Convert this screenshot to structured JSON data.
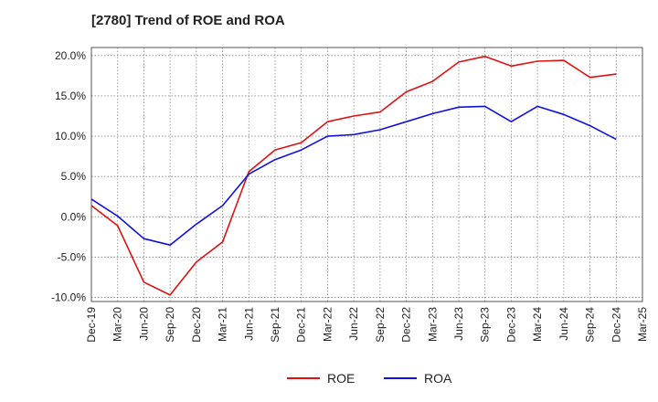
{
  "chart_data": {
    "type": "line",
    "title": "[2780]  Trend of ROE and ROA",
    "xlabel": "",
    "ylabel": "",
    "categories": [
      "Dec-19",
      "Mar-20",
      "Jun-20",
      "Sep-20",
      "Dec-20",
      "Mar-21",
      "Jun-21",
      "Sep-21",
      "Dec-21",
      "Mar-22",
      "Jun-22",
      "Sep-22",
      "Dec-22",
      "Mar-23",
      "Jun-23",
      "Sep-23",
      "Dec-23",
      "Mar-24",
      "Jun-24",
      "Sep-24",
      "Dec-24",
      "Mar-25"
    ],
    "y_ticks": [
      "20.0%",
      "15.0%",
      "10.0%",
      "5.0%",
      "0.0%",
      "-5.0%",
      "-10.0%"
    ],
    "y_tick_values": [
      20,
      15,
      10,
      5,
      0,
      -5,
      -10
    ],
    "ylim": [
      -10.5,
      21
    ],
    "grid": true,
    "legend_position": "bottom-center",
    "series": [
      {
        "name": "ROE",
        "color": "#e01010",
        "values": [
          1.4,
          -1.1,
          -8.1,
          -9.7,
          -5.6,
          -3.1,
          5.6,
          8.3,
          9.2,
          11.8,
          12.5,
          13.0,
          15.5,
          16.8,
          19.2,
          19.9,
          18.7,
          19.3,
          19.4,
          17.3,
          17.7,
          null
        ]
      },
      {
        "name": "ROA",
        "color": "#1010e0",
        "values": [
          2.2,
          0.1,
          -2.7,
          -3.5,
          -0.9,
          1.4,
          5.3,
          7.1,
          8.3,
          10.0,
          10.2,
          10.8,
          11.8,
          12.8,
          13.6,
          13.7,
          11.8,
          13.7,
          12.7,
          11.3,
          9.6,
          null
        ]
      }
    ]
  }
}
